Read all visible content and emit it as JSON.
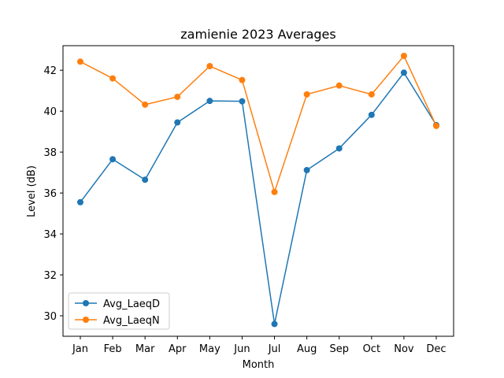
{
  "chart_data": {
    "type": "line",
    "title": "zamienie 2023 Averages",
    "xlabel": "Month",
    "ylabel": "Level (dB)",
    "categories": [
      "Jan",
      "Feb",
      "Mar",
      "Apr",
      "May",
      "Jun",
      "Jul",
      "Aug",
      "Sep",
      "Oct",
      "Nov",
      "Dec"
    ],
    "ylim": [
      29,
      43.2
    ],
    "yticks": [
      30,
      32,
      34,
      36,
      38,
      40,
      42
    ],
    "grid": false,
    "legend_position": "lower-left",
    "series": [
      {
        "name": "Avg_LaeqD",
        "color": "#1f77b4",
        "values": [
          35.55,
          37.65,
          36.65,
          39.45,
          40.5,
          40.48,
          29.6,
          37.12,
          38.18,
          39.82,
          41.88,
          39.32
        ]
      },
      {
        "name": "Avg_LaeqN",
        "color": "#ff7f0e",
        "values": [
          42.42,
          41.6,
          40.32,
          40.7,
          42.2,
          41.52,
          36.05,
          40.82,
          41.25,
          40.82,
          42.7,
          39.28
        ]
      }
    ]
  }
}
